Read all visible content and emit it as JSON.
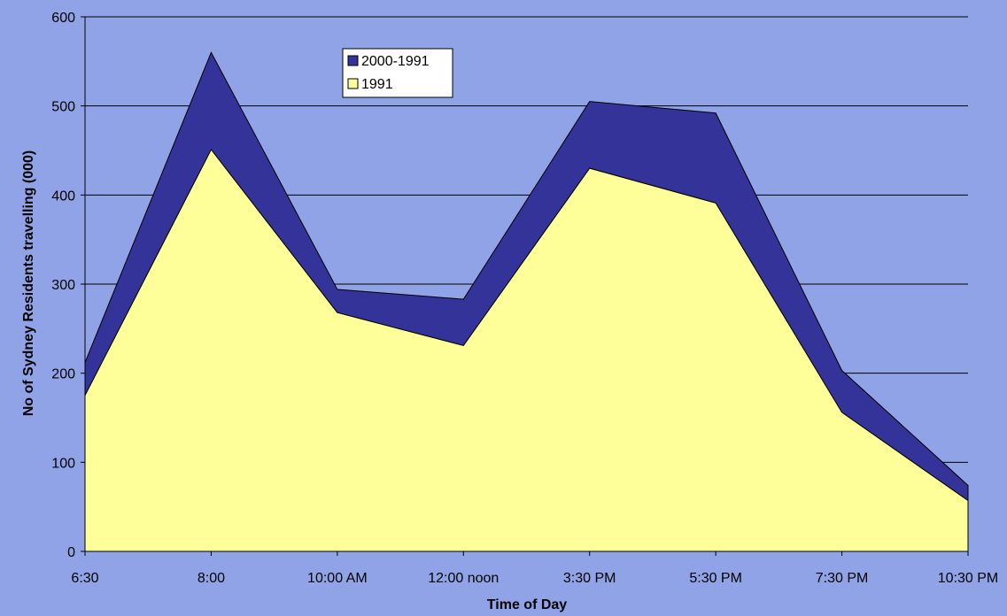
{
  "colors": {
    "background": "#8fa3e6",
    "plot_background": "#8fa3e6",
    "gridline": "#000000",
    "series_2000_1991": "#333399",
    "series_1991": "#ffff99",
    "outline": "#000000"
  },
  "chart_data": {
    "type": "area",
    "stacked": true,
    "title": "",
    "xlabel": "Time of Day",
    "ylabel": "No of Sydney Residents travelling (000)",
    "ylim": [
      0,
      600
    ],
    "yticks": [
      0,
      100,
      200,
      300,
      400,
      500,
      600
    ],
    "grid": true,
    "legend_position": "top-left inside plot",
    "categories": [
      "6:30",
      "8:00",
      "10:00 AM",
      "12:00 noon",
      "3:30 PM",
      "5:30 PM",
      "7:30 PM",
      "10:30 PM"
    ],
    "series": [
      {
        "name": "1991",
        "color": "#ffff99",
        "values": [
          175,
          451,
          268,
          231,
          430,
          391,
          156,
          57
        ]
      },
      {
        "name": "2000-1991",
        "color": "#333399",
        "values": [
          37,
          109,
          26,
          52,
          75,
          101,
          47,
          17
        ]
      }
    ],
    "legend": [
      "2000-1991",
      "1991"
    ]
  }
}
